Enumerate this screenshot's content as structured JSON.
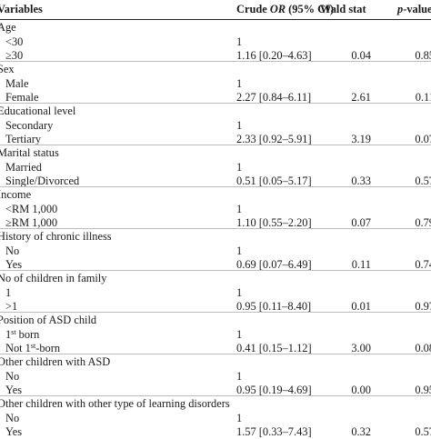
{
  "header": {
    "variables": "Variables",
    "crude_or_prefix": "Crude ",
    "crude_or_italic": "OR",
    "crude_or_suffix": " (95% CI)",
    "wald": "Wald stat",
    "p_italic": "p",
    "p_suffix": "-values"
  },
  "sections": [
    {
      "label": "Age",
      "rows": [
        {
          "level": "<30",
          "or": "1",
          "wald": "",
          "p": ""
        },
        {
          "level": "≥30",
          "or": "1.16 [0.20–4.63]",
          "wald": "0.04",
          "p": "0.85"
        }
      ]
    },
    {
      "label": "Sex",
      "rows": [
        {
          "level": "Male",
          "or": "1",
          "wald": "",
          "p": ""
        },
        {
          "level": "Female",
          "or": "2.27 [0.84–6.11]",
          "wald": "2.61",
          "p": "0.11"
        }
      ]
    },
    {
      "label": "Educational level",
      "rows": [
        {
          "level": "Secondary",
          "or": "1",
          "wald": "",
          "p": ""
        },
        {
          "level": "Tertiary",
          "or": "2.33 [0.92–5.91]",
          "wald": "3.19",
          "p": "0.07"
        }
      ]
    },
    {
      "label": "Marital status",
      "rows": [
        {
          "level": "Married",
          "or": "1",
          "wald": "",
          "p": ""
        },
        {
          "level": "Single/Divorced",
          "or": "0.51 [0.05–5.17]",
          "wald": "0.33",
          "p": "0.57"
        }
      ]
    },
    {
      "label": "Income",
      "rows": [
        {
          "level": "<RM 1,000",
          "or": "1",
          "wald": "",
          "p": ""
        },
        {
          "level": "≥RM 1,000",
          "or": "1.10 [0.55–2.20]",
          "wald": "0.07",
          "p": "0.79"
        }
      ]
    },
    {
      "label": "History of chronic illness",
      "rows": [
        {
          "level": "No",
          "or": "1",
          "wald": "",
          "p": ""
        },
        {
          "level": "Yes",
          "or": "0.69 [0.07–6.49]",
          "wald": "0.11",
          "p": "0.74"
        }
      ]
    },
    {
      "label": "No of children in family",
      "rows": [
        {
          "level": "1",
          "or": "1",
          "wald": "",
          "p": ""
        },
        {
          "level": ">1",
          "or": "0.95 [0.11–8.40]",
          "wald": "0.01",
          "p": "0.97"
        }
      ]
    },
    {
      "label": "Position of ASD child",
      "rows": [
        {
          "level": "1",
          "level_sup": "st",
          "level_after": " born",
          "or": "1",
          "wald": "",
          "p": ""
        },
        {
          "level": "Not 1",
          "level_sup": "st",
          "level_after": "-born",
          "or": "0.41 [0.15–1.12]",
          "wald": "3.00",
          "p": "0.08"
        }
      ]
    },
    {
      "label": "Other children with ASD",
      "rows": [
        {
          "level": "No",
          "or": "1",
          "wald": "",
          "p": ""
        },
        {
          "level": "Yes",
          "or": "0.95 [0.19–4.69]",
          "wald": "0.00",
          "p": "0.95"
        }
      ]
    },
    {
      "label": "Other children with other type of learning disorders",
      "rows": [
        {
          "level": "No",
          "or": "1",
          "wald": "",
          "p": ""
        },
        {
          "level": "Yes",
          "or": "1.57 [0.33–7.43]",
          "wald": "0.32",
          "p": "0.57"
        }
      ]
    }
  ]
}
